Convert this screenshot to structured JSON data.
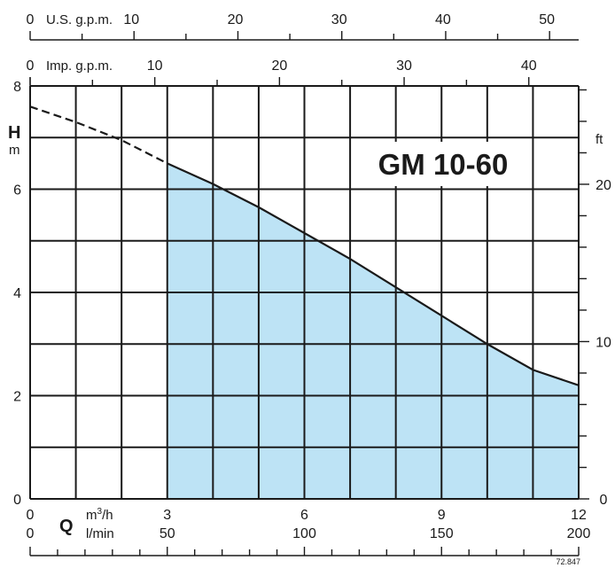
{
  "chart_data": {
    "type": "area",
    "title": "GM 10-60",
    "colors": {
      "fill": "#bde3f5",
      "grid": "#1a1a1a",
      "curve": "#1a1a1a"
    },
    "y_axis_left": {
      "label": "H",
      "unit": "m",
      "range": [
        0,
        8
      ],
      "ticks": [
        0,
        2,
        4,
        6,
        8
      ]
    },
    "y_axis_right": {
      "unit": "ft",
      "range": [
        0,
        26.25
      ],
      "ticks": [
        0,
        10,
        20
      ]
    },
    "x_axis_top_us": {
      "label": "U.S. g.p.m.",
      "range": [
        0,
        52.8
      ],
      "ticks": [
        0,
        10,
        20,
        30,
        40,
        50
      ]
    },
    "x_axis_top_imp": {
      "label": "Imp. g.p.m.",
      "range": [
        0,
        44
      ],
      "ticks": [
        0,
        10,
        20,
        30,
        40
      ]
    },
    "x_axis_bottom_m3h": {
      "symbol": "Q",
      "unit_base": "m",
      "unit_sup": "3",
      "unit_tail": "/h",
      "range": [
        0,
        12
      ],
      "ticks": [
        0,
        3,
        6,
        9,
        12
      ]
    },
    "x_axis_bottom_lmin": {
      "unit": "l/min",
      "range": [
        0,
        200
      ],
      "ticks": [
        0,
        50,
        100,
        150,
        200
      ]
    },
    "grid": true,
    "series": [
      {
        "style": "solid",
        "x": [
          3,
          4,
          5,
          6,
          7,
          8,
          9,
          10,
          11,
          12
        ],
        "y": [
          6.5,
          6.1,
          5.65,
          5.15,
          4.65,
          4.1,
          3.55,
          3.0,
          2.5,
          2.2
        ]
      },
      {
        "style": "dashed",
        "x": [
          0,
          1,
          2,
          3
        ],
        "y": [
          7.6,
          7.3,
          6.95,
          6.5
        ]
      }
    ],
    "shaded_region": {
      "x_from": 3,
      "x_to": 12
    },
    "code": "72.847"
  }
}
